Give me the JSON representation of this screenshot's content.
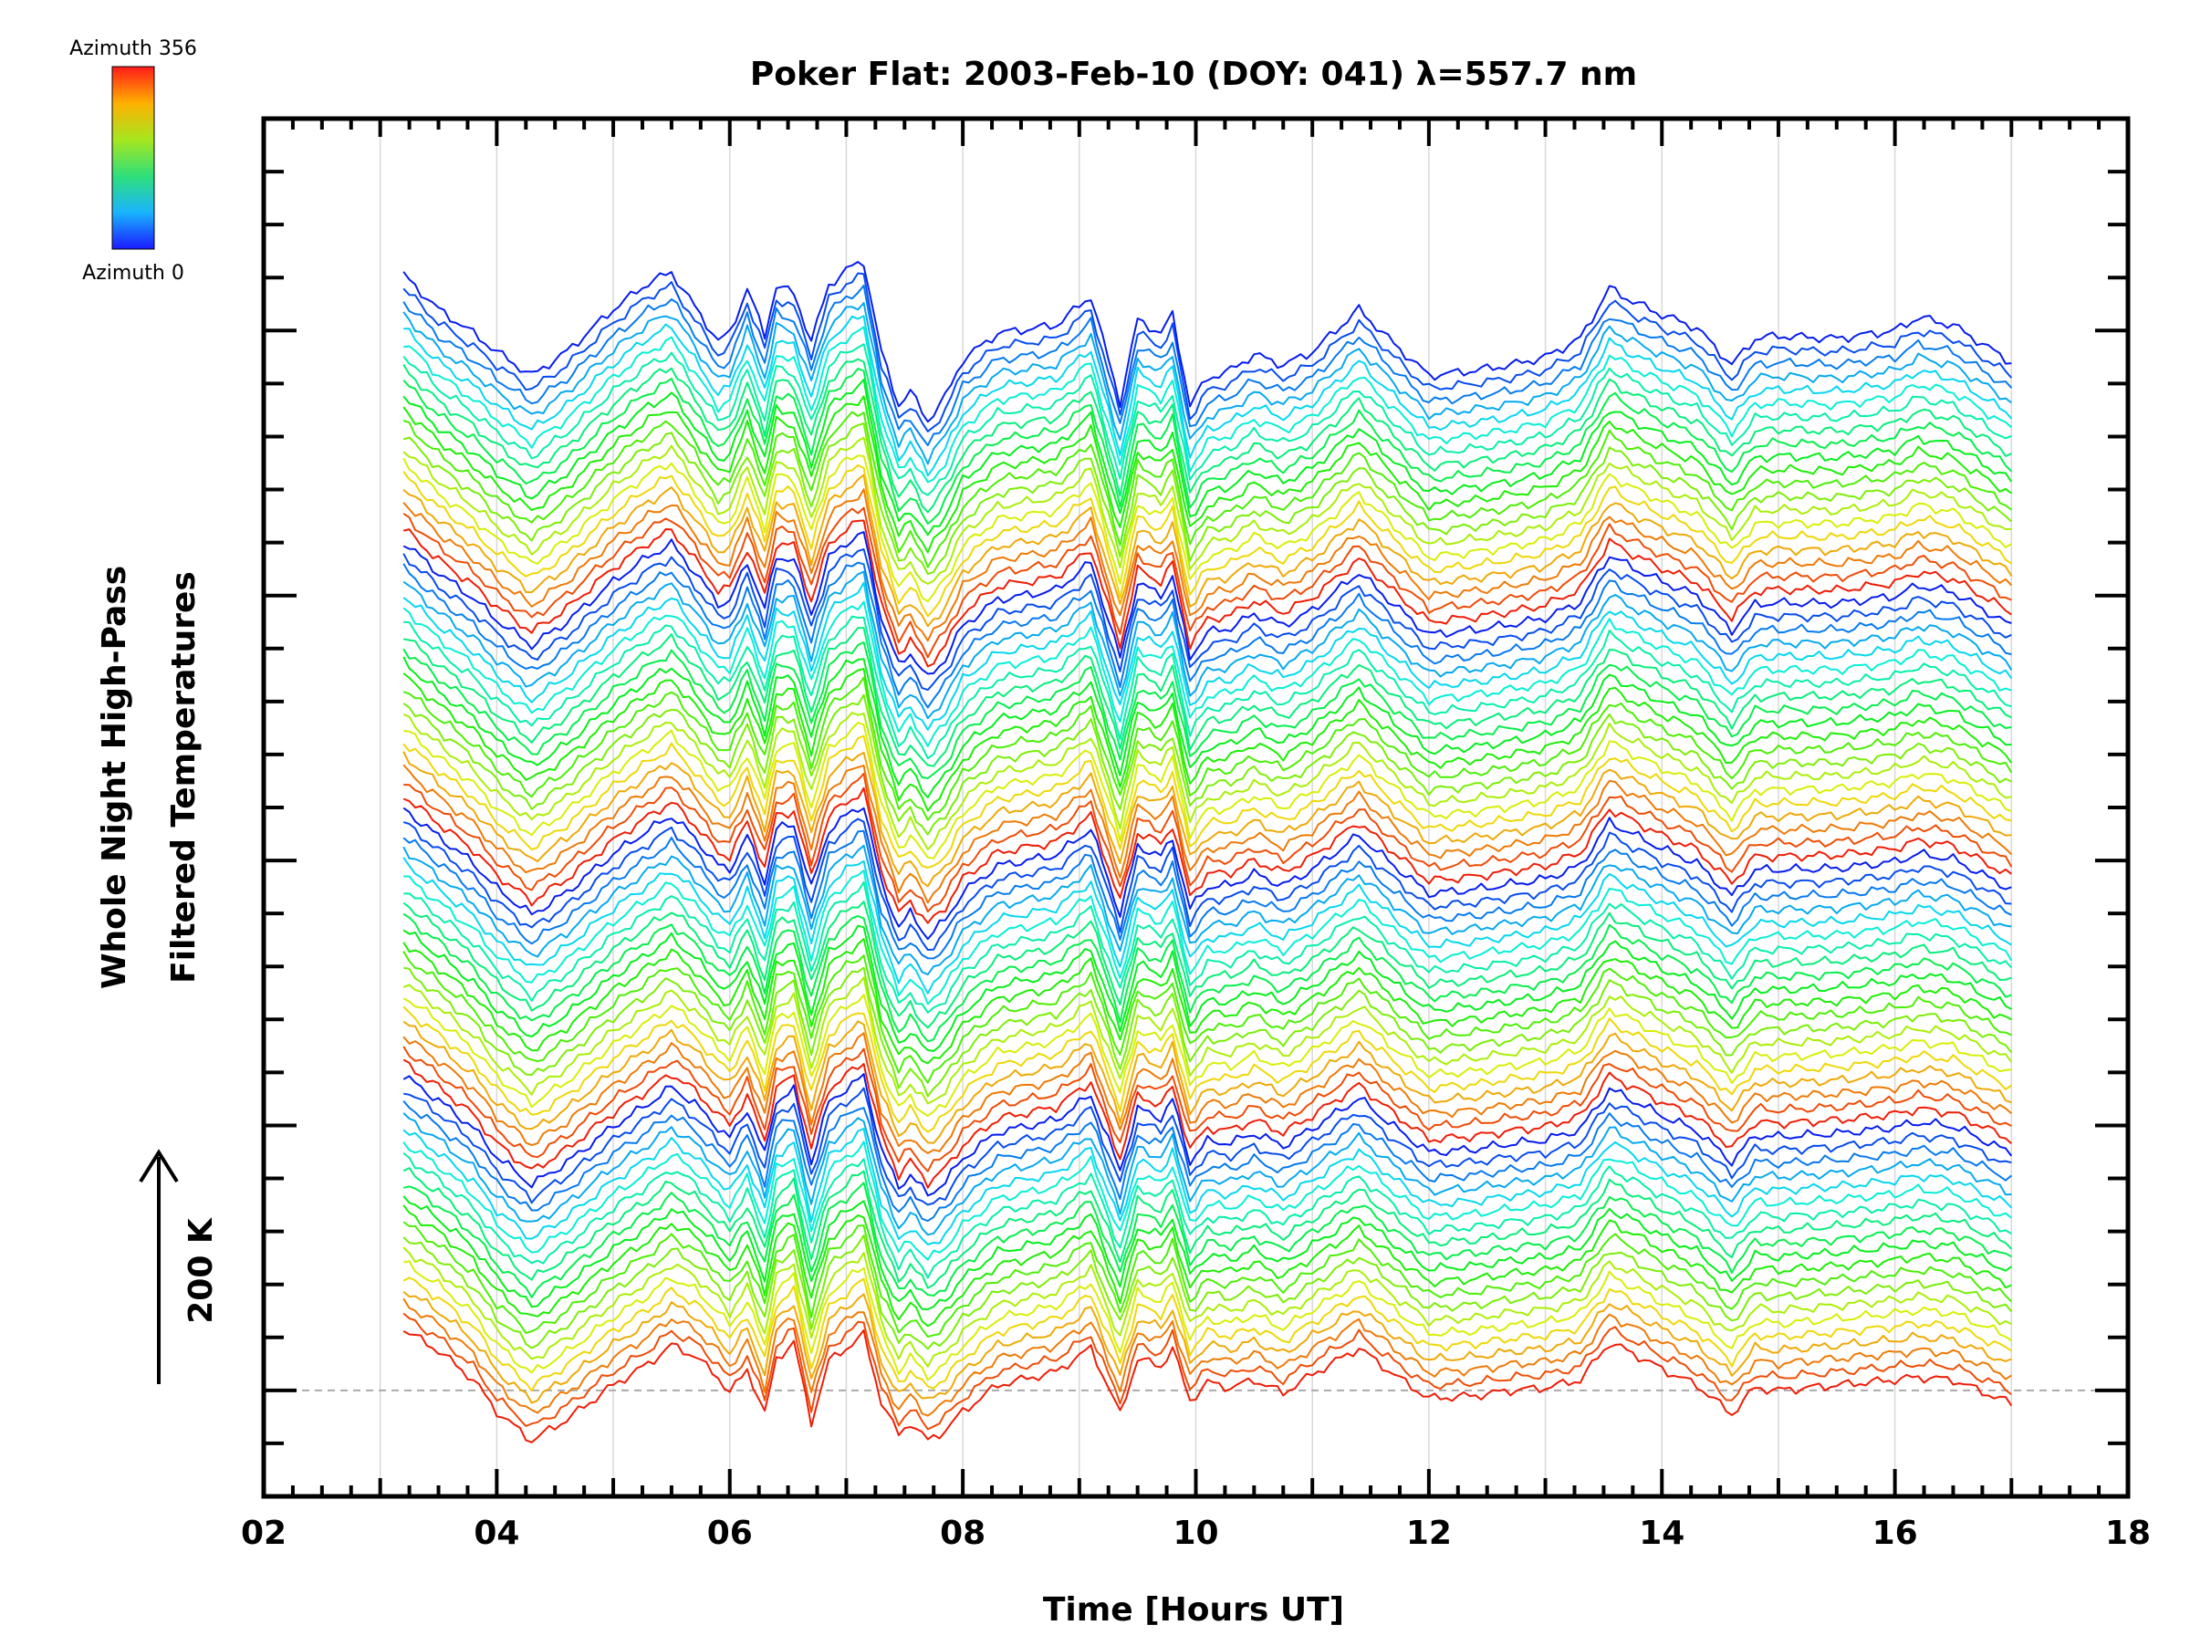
{
  "chart_data": {
    "type": "line",
    "title": "Poker Flat: 2003-Feb-10 (DOY: 041) λ=557.7 nm",
    "xlabel": "Time [Hours UT]",
    "ylabel_line1": "Whole Night High-Pass",
    "ylabel_line2": "Filtered Temperatures",
    "scale_label": "200 K",
    "colorbar_top": "Azimuth 356",
    "colorbar_bottom": "Azimuth 0",
    "xlim": [
      2,
      18
    ],
    "x_ticks": [
      "02",
      "04",
      "06",
      "08",
      "10",
      "12",
      "14",
      "16",
      "18"
    ],
    "x_tick_values": [
      2,
      4,
      6,
      8,
      10,
      12,
      14,
      16,
      18
    ],
    "x_gridlines": [
      3,
      4,
      5,
      6,
      7,
      8,
      9,
      10,
      11,
      12,
      13,
      14,
      15,
      16,
      17
    ],
    "ylim": [
      -200,
      2400
    ],
    "y_major_step": 200,
    "y_minor_step": 100,
    "baseline": 0,
    "x_start": 3.2,
    "x_end": 17.0,
    "num_traces": 80,
    "trace_offset_K": 25,
    "scale_bar_K": 200,
    "anchor_times": [
      3.2,
      3.5,
      3.8,
      4.0,
      4.3,
      4.6,
      5.0,
      5.3,
      5.5,
      5.7,
      5.9,
      6.0,
      6.15,
      6.3,
      6.4,
      6.55,
      6.7,
      6.85,
      7.0,
      7.15,
      7.3,
      7.45,
      7.55,
      7.7,
      7.85,
      8.0,
      8.3,
      8.8,
      9.1,
      9.35,
      9.5,
      9.7,
      9.8,
      9.95,
      10.1,
      10.3,
      10.5,
      10.75,
      11.0,
      11.4,
      11.7,
      12.0,
      12.4,
      12.7,
      13.0,
      13.3,
      13.55,
      13.75,
      14.0,
      14.3,
      14.6,
      14.8,
      15.0,
      15.5,
      16.0,
      16.2,
      16.5,
      17.0
    ],
    "anchor_values_bottom": [
      115,
      75,
      20,
      -40,
      -95,
      -55,
      10,
      50,
      85,
      65,
      25,
      -5,
      40,
      -45,
      60,
      90,
      -60,
      55,
      80,
      105,
      -20,
      -85,
      -60,
      -95,
      -75,
      -40,
      10,
      35,
      80,
      -45,
      60,
      45,
      80,
      -20,
      15,
      5,
      20,
      -5,
      30,
      80,
      30,
      -15,
      -10,
      0,
      5,
      20,
      90,
      70,
      40,
      10,
      -45,
      5,
      0,
      10,
      20,
      25,
      20,
      -25
    ],
    "anchor_values_top": [
      2105,
      2040,
      1995,
      1960,
      1915,
      1960,
      2040,
      2090,
      2110,
      2045,
      1980,
      1995,
      2080,
      1990,
      2085,
      2070,
      1980,
      2085,
      2115,
      2130,
      1960,
      1860,
      1885,
      1830,
      1875,
      1945,
      1995,
      2010,
      2065,
      1865,
      2020,
      1995,
      2030,
      1860,
      1910,
      1925,
      1955,
      1935,
      1960,
      2040,
      1975,
      1915,
      1925,
      1935,
      1950,
      1985,
      2080,
      2055,
      2030,
      2005,
      1935,
      1985,
      1990,
      1985,
      2000,
      2025,
      2010,
      1940
    ],
    "azimuth_range": [
      0,
      356
    ]
  }
}
